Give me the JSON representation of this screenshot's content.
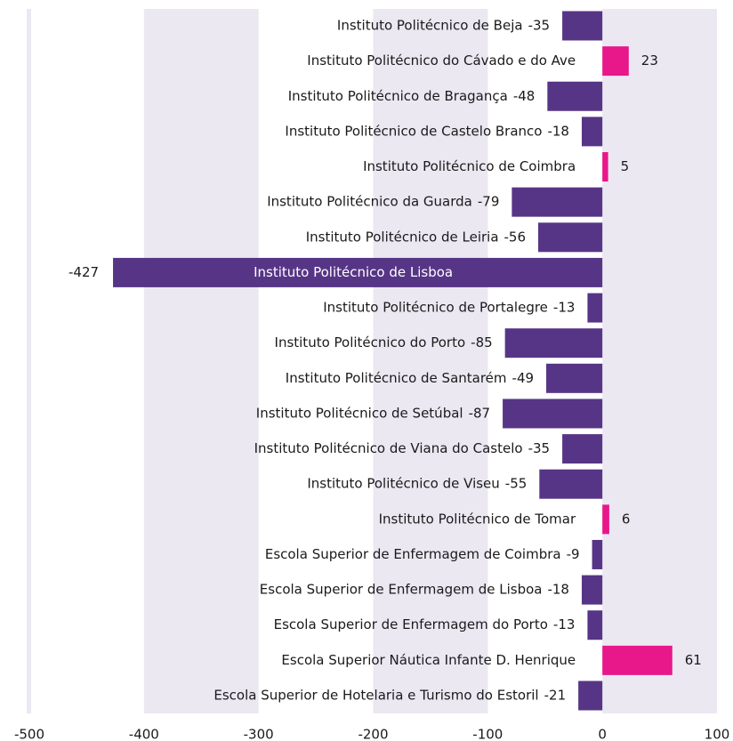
{
  "chart_data": {
    "type": "bar",
    "orientation": "horizontal",
    "categories": [
      "Instituto Politécnico de Beja",
      "Instituto Politécnico do Cávado e do Ave",
      "Instituto Politécnico de Bragança",
      "Instituto Politécnico de Castelo Branco",
      "Instituto Politécnico de Coimbra",
      "Instituto Politécnico da Guarda",
      "Instituto Politécnico de Leiria",
      "Instituto Politécnico de Lisboa",
      "Instituto Politécnico de Portalegre",
      "Instituto Politécnico do Porto",
      "Instituto Politécnico de Santarém",
      "Instituto Politécnico de Setúbal",
      "Instituto Politécnico de Viana do Castelo",
      "Instituto Politécnico de Viseu",
      "Instituto Politécnico de Tomar",
      "Escola Superior de Enfermagem de Coimbra",
      "Escola Superior de Enfermagem de Lisboa",
      "Escola Superior de Enfermagem do Porto",
      "Escola Superior Náutica Infante D. Henrique",
      "Escola Superior de Hotelaria e Turismo do Estoril"
    ],
    "values": [
      -35,
      23,
      -48,
      -18,
      5,
      -79,
      -56,
      -427,
      -13,
      -85,
      -49,
      -87,
      -35,
      -55,
      6,
      -9,
      -18,
      -13,
      61,
      -21
    ],
    "negative_color": "#573586",
    "positive_color": "#e8178a",
    "band_color": "#ebe8f2",
    "xlim": [
      -500,
      100
    ],
    "xticks": [
      -500,
      -400,
      -300,
      -200,
      -100,
      0,
      100
    ]
  }
}
